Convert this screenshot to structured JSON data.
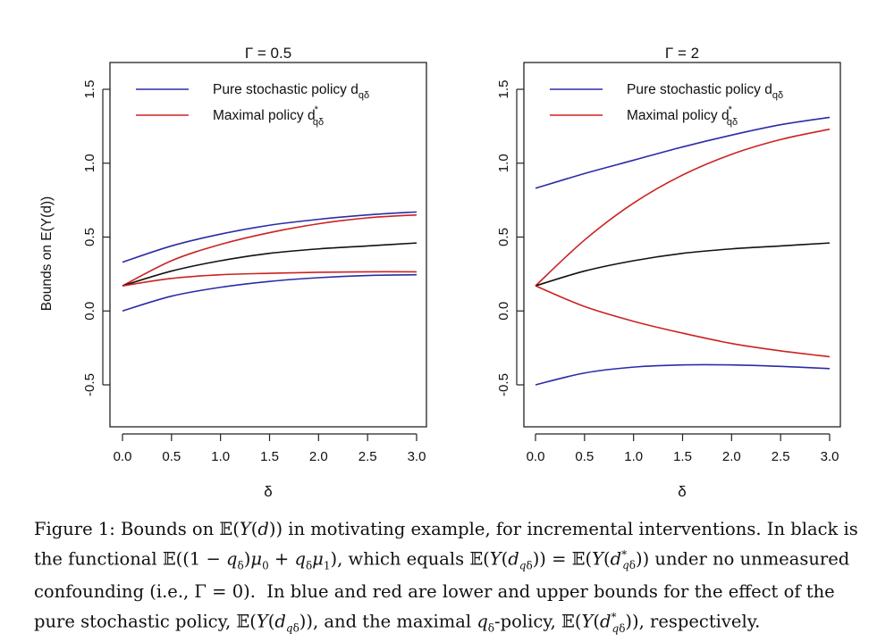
{
  "chart_data": [
    {
      "type": "line",
      "title": "Γ = 0.5",
      "xlabel": "δ",
      "ylabel": "Bounds on  E(Y(d))",
      "xlim": [
        0,
        3
      ],
      "ylim": [
        -0.75,
        1.65
      ],
      "xticks": [
        "0.0",
        "0.5",
        "1.0",
        "1.5",
        "2.0",
        "2.5",
        "3.0"
      ],
      "yticks": [
        "-0.5",
        "0.0",
        "0.5",
        "1.0",
        "1.5"
      ],
      "legend_position": "top-left",
      "grid": false,
      "legend": [
        {
          "label": "Pure stochastic policy d",
          "sub": "qδ",
          "sup": "",
          "color": "#2b2ba8"
        },
        {
          "label": "Maximal policy d",
          "sub": "qδ",
          "sup": "*",
          "color": "#cc2222"
        }
      ],
      "x": [
        0,
        0.5,
        1.0,
        1.5,
        2.0,
        2.5,
        3.0
      ],
      "series": [
        {
          "color": "#2b2ba8",
          "values": [
            0.33,
            0.44,
            0.52,
            0.58,
            0.62,
            0.65,
            0.67
          ]
        },
        {
          "color": "#cc2222",
          "values": [
            0.17,
            0.34,
            0.45,
            0.53,
            0.59,
            0.63,
            0.65
          ]
        },
        {
          "color": "#111111",
          "values": [
            0.17,
            0.27,
            0.34,
            0.39,
            0.42,
            0.44,
            0.46
          ]
        },
        {
          "color": "#cc2222",
          "values": [
            0.17,
            0.22,
            0.245,
            0.255,
            0.262,
            0.265,
            0.265
          ]
        },
        {
          "color": "#2b2ba8",
          "values": [
            0.0,
            0.1,
            0.16,
            0.2,
            0.225,
            0.24,
            0.245
          ]
        }
      ]
    },
    {
      "type": "line",
      "title": "Γ = 2",
      "xlabel": "δ",
      "ylabel": "",
      "xlim": [
        0,
        3
      ],
      "ylim": [
        -0.75,
        1.65
      ],
      "xticks": [
        "0.0",
        "0.5",
        "1.0",
        "1.5",
        "2.0",
        "2.5",
        "3.0"
      ],
      "yticks": [
        "-0.5",
        "0.0",
        "0.5",
        "1.0",
        "1.5"
      ],
      "legend_position": "top-left",
      "grid": false,
      "legend": [
        {
          "label": "Pure stochastic policy d",
          "sub": "qδ",
          "sup": "",
          "color": "#2b2ba8"
        },
        {
          "label": "Maximal policy d",
          "sub": "qδ",
          "sup": "*",
          "color": "#cc2222"
        }
      ],
      "x": [
        0,
        0.5,
        1.0,
        1.5,
        2.0,
        2.5,
        3.0
      ],
      "series": [
        {
          "color": "#2b2ba8",
          "values": [
            0.83,
            0.93,
            1.02,
            1.11,
            1.19,
            1.26,
            1.31
          ]
        },
        {
          "color": "#cc2222",
          "values": [
            0.17,
            0.48,
            0.73,
            0.92,
            1.06,
            1.16,
            1.23
          ]
        },
        {
          "color": "#111111",
          "values": [
            0.17,
            0.27,
            0.34,
            0.39,
            0.42,
            0.44,
            0.46
          ]
        },
        {
          "color": "#cc2222",
          "values": [
            0.17,
            0.03,
            -0.07,
            -0.15,
            -0.22,
            -0.27,
            -0.31
          ]
        },
        {
          "color": "#2b2ba8",
          "values": [
            -0.5,
            -0.42,
            -0.38,
            -0.365,
            -0.365,
            -0.375,
            -0.39
          ]
        }
      ]
    }
  ],
  "caption": {
    "line1": "Figure 1: Bounds on 𝔼(Y(d)) in motivating example, for incremental interventions. In black is",
    "line2": "the functional 𝔼((1 − q_δ)μ₀ + q_δμ₁), which equals 𝔼(Y(d_{q_δ})) = 𝔼(Y(d*_{q_δ})) under no unmeasured",
    "line3": "confounding (i.e., Γ = 0). In blue and red are lower and upper bounds for the effect of the",
    "line4": "pure stochastic policy, 𝔼(Y(d_{q_δ})), and the maximal q_δ-policy, 𝔼(Y(d*_{q_δ})), respectively."
  }
}
